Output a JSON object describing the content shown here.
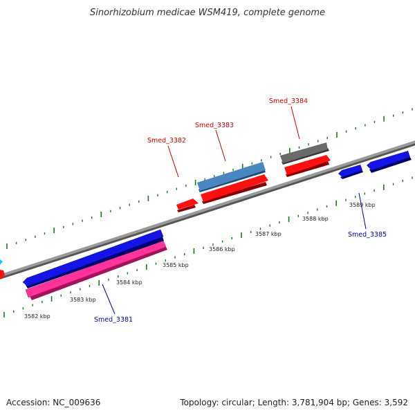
{
  "header": {
    "title": "Sinorhizobium medicae WSM419, complete genome"
  },
  "footer": {
    "accession": "Accession: NC_009636",
    "topology": "Topology: circular; Length: 3,781,904 bp; Genes: 3,592"
  },
  "scale": {
    "ticks": [
      "3582 kbp",
      "3583 kbp",
      "3584 kbp",
      "3585 kbp",
      "3586 kbp",
      "3587 kbp",
      "3588 kbp",
      "3589 kbp"
    ]
  },
  "genes": {
    "smed_3381": "Smed_3381",
    "smed_3382": "Smed_3382",
    "smed_3383": "Smed_3383",
    "smed_3384": "Smed_3384",
    "smed_3385": "Smed_3385"
  },
  "colors": {
    "forward_gene": "#ff0000",
    "reverse_gene": "#0000ff",
    "pink_gene": "#ff3399",
    "steelblue_gene": "#4682b4",
    "gray_gene": "#666666",
    "backbone": "#888888",
    "tick_green": "#1a7a1a"
  }
}
